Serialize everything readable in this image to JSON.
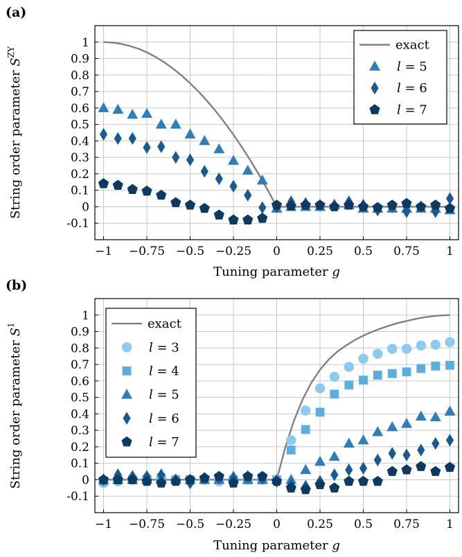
{
  "chart_data": [
    {
      "panel": "(a)",
      "type": "scatter",
      "xlabel": "Tuning parameter g",
      "ylabel": "String order parameter S^{ZY}",
      "xlim": [
        -1.05,
        1.05
      ],
      "ylim": [
        -0.2,
        1.1
      ],
      "xticks": [
        -1,
        -0.75,
        -0.5,
        -0.25,
        0,
        0.25,
        0.5,
        0.75,
        1
      ],
      "xtick_labels": [
        "−1",
        "−0.75",
        "−0.5",
        "−0.25",
        "0",
        "0.25",
        "0.5",
        "0.75",
        "1"
      ],
      "yticks": [
        -0.1,
        0,
        0.1,
        0.2,
        0.3,
        0.4,
        0.5,
        0.6,
        0.7,
        0.8,
        0.9,
        1
      ],
      "ytick_labels": [
        "-0.1",
        "0",
        "0.1",
        "0.2",
        "0.3",
        "0.4",
        "0.5",
        "0.6",
        "0.7",
        "0.8",
        "0.9",
        "1"
      ],
      "grid": true,
      "legend_position": "top-right",
      "exact": {
        "name": "exact",
        "color": "#808080",
        "x": [
          -1,
          -0.95,
          -0.9,
          -0.85,
          -0.8,
          -0.75,
          -0.7,
          -0.65,
          -0.6,
          -0.55,
          -0.5,
          -0.45,
          -0.4,
          -0.35,
          -0.3,
          -0.25,
          -0.2,
          -0.15,
          -0.1,
          -0.05,
          0,
          0.25,
          0.5,
          0.75,
          1
        ],
        "y": [
          1,
          0.997,
          0.99,
          0.977,
          0.96,
          0.938,
          0.91,
          0.878,
          0.84,
          0.798,
          0.75,
          0.698,
          0.64,
          0.578,
          0.51,
          0.438,
          0.36,
          0.278,
          0.19,
          0.098,
          0,
          0,
          0,
          0,
          0
        ]
      },
      "series": [
        {
          "name": "l = 5",
          "marker": "triangle",
          "color": "#2e7ebb",
          "x": [
            -1,
            -0.917,
            -0.833,
            -0.75,
            -0.667,
            -0.583,
            -0.5,
            -0.417,
            -0.333,
            -0.25,
            -0.167,
            -0.083,
            0,
            0.083,
            0.167,
            0.25,
            0.333,
            0.417,
            0.5,
            0.583,
            0.667,
            0.75,
            0.833,
            0.917,
            1
          ],
          "y": [
            0.6,
            0.59,
            0.56,
            0.565,
            0.5,
            0.5,
            0.44,
            0.4,
            0.35,
            0.28,
            0.22,
            0.16,
            -0.01,
            0.0,
            0.0,
            0.0,
            0.01,
            0.01,
            -0.01,
            -0.01,
            -0.01,
            -0.01,
            -0.01,
            -0.01,
            -0.02
          ]
        },
        {
          "name": "l = 6",
          "marker": "diamond",
          "color": "#1a5a92",
          "x": [
            -1,
            -0.917,
            -0.833,
            -0.75,
            -0.667,
            -0.583,
            -0.5,
            -0.417,
            -0.333,
            -0.25,
            -0.167,
            -0.083,
            0,
            0.083,
            0.167,
            0.25,
            0.333,
            0.417,
            0.5,
            0.583,
            0.667,
            0.75,
            0.833,
            0.917,
            1
          ],
          "y": [
            0.44,
            0.415,
            0.415,
            0.36,
            0.365,
            0.3,
            0.285,
            0.215,
            0.17,
            0.125,
            0.07,
            -0.005,
            0.0,
            0.03,
            0.02,
            0.01,
            0.01,
            0.03,
            0.01,
            -0.02,
            0.0,
            -0.03,
            0.0,
            -0.03,
            0.05
          ]
        },
        {
          "name": "l = 7",
          "marker": "pentagon",
          "color": "#0d3a60",
          "x": [
            -1,
            -0.917,
            -0.833,
            -0.75,
            -0.667,
            -0.583,
            -0.5,
            -0.417,
            -0.333,
            -0.25,
            -0.167,
            -0.083,
            0,
            0.083,
            0.167,
            0.25,
            0.333,
            0.417,
            0.5,
            0.583,
            0.667,
            0.75,
            0.833,
            0.917,
            1
          ],
          "y": [
            0.14,
            0.13,
            0.105,
            0.095,
            0.07,
            0.025,
            0.01,
            -0.01,
            -0.05,
            -0.08,
            -0.08,
            -0.07,
            0.01,
            0.005,
            0.01,
            0.01,
            0.0,
            0.01,
            0.0,
            -0.005,
            0.01,
            0.02,
            0.0,
            0.01,
            -0.01
          ]
        }
      ]
    },
    {
      "panel": "(b)",
      "type": "scatter",
      "xlabel": "Tuning parameter g",
      "ylabel": "String order parameter S^{1}",
      "xlim": [
        -1.05,
        1.05
      ],
      "ylim": [
        -0.2,
        1.1
      ],
      "xticks": [
        -1,
        -0.75,
        -0.5,
        -0.25,
        0,
        0.25,
        0.5,
        0.75,
        1
      ],
      "xtick_labels": [
        "−1",
        "−0.75",
        "−0.5",
        "−0.25",
        "0",
        "0.25",
        "0.5",
        "0.75",
        "1"
      ],
      "yticks": [
        -0.1,
        0,
        0.1,
        0.2,
        0.3,
        0.4,
        0.5,
        0.6,
        0.7,
        0.8,
        0.9,
        1
      ],
      "ytick_labels": [
        "-0.1",
        "0",
        "0.1",
        "0.2",
        "0.3",
        "0.4",
        "0.5",
        "0.6",
        "0.7",
        "0.8",
        "0.9",
        "1"
      ],
      "grid": true,
      "legend_position": "top-left",
      "exact": {
        "name": "exact",
        "color": "#808080",
        "x": [
          -1,
          -0.5,
          0,
          0.05,
          0.1,
          0.15,
          0.2,
          0.25,
          0.3,
          0.35,
          0.4,
          0.45,
          0.5,
          0.55,
          0.6,
          0.65,
          0.7,
          0.75,
          0.8,
          0.85,
          0.9,
          0.95,
          1
        ],
        "y": [
          0,
          0,
          0,
          0.198,
          0.36,
          0.488,
          0.59,
          0.668,
          0.73,
          0.778,
          0.815,
          0.848,
          0.875,
          0.898,
          0.918,
          0.936,
          0.952,
          0.964,
          0.976,
          0.986,
          0.993,
          0.998,
          1
        ]
      },
      "series": [
        {
          "name": "l = 3",
          "marker": "circle",
          "color": "#8ccbf0",
          "x": [
            -1,
            -0.917,
            -0.833,
            -0.75,
            -0.667,
            -0.583,
            -0.5,
            -0.417,
            -0.333,
            -0.25,
            -0.167,
            -0.083,
            0,
            0.083,
            0.167,
            0.25,
            0.333,
            0.417,
            0.5,
            0.583,
            0.667,
            0.75,
            0.833,
            0.917,
            1
          ],
          "y": [
            -0.02,
            -0.01,
            0.0,
            0.01,
            0.01,
            0.0,
            -0.01,
            0.0,
            -0.01,
            -0.01,
            0.0,
            0.0,
            0.0,
            0.24,
            0.42,
            0.555,
            0.625,
            0.685,
            0.735,
            0.765,
            0.795,
            0.795,
            0.815,
            0.82,
            0.835
          ]
        },
        {
          "name": "l = 4",
          "marker": "square",
          "color": "#5aaee0",
          "x": [
            -1,
            -0.917,
            -0.833,
            -0.75,
            -0.667,
            -0.583,
            -0.5,
            -0.417,
            -0.333,
            -0.25,
            -0.167,
            -0.083,
            0,
            0.083,
            0.167,
            0.25,
            0.333,
            0.417,
            0.5,
            0.583,
            0.667,
            0.75,
            0.833,
            0.917,
            1
          ],
          "y": [
            -0.01,
            0.0,
            0.0,
            0.0,
            0.01,
            0.0,
            0.0,
            0.0,
            0.01,
            0.0,
            0.0,
            0.0,
            0.0,
            0.18,
            0.305,
            0.41,
            0.52,
            0.575,
            0.605,
            0.635,
            0.645,
            0.655,
            0.675,
            0.69,
            0.695
          ]
        },
        {
          "name": "l = 5",
          "marker": "triangle",
          "color": "#2e7ebb",
          "x": [
            -1,
            -0.917,
            -0.833,
            -0.75,
            -0.667,
            -0.583,
            -0.5,
            -0.417,
            -0.333,
            -0.25,
            -0.167,
            -0.083,
            0,
            0.083,
            0.167,
            0.25,
            0.333,
            0.417,
            0.5,
            0.583,
            0.667,
            0.75,
            0.833,
            0.917,
            1
          ],
          "y": [
            0.0,
            0.0,
            0.0,
            0.0,
            0.0,
            0.0,
            0.0,
            0.0,
            0.0,
            0.02,
            0.0,
            0.0,
            0.0,
            0.0,
            0.06,
            0.11,
            0.14,
            0.22,
            0.24,
            0.29,
            0.32,
            0.34,
            0.385,
            0.38,
            0.415
          ]
        },
        {
          "name": "l = 6",
          "marker": "diamond",
          "color": "#1a5a92",
          "x": [
            -1,
            -0.917,
            -0.833,
            -0.75,
            -0.667,
            -0.583,
            -0.5,
            -0.417,
            -0.333,
            -0.25,
            -0.167,
            -0.083,
            0,
            0.083,
            0.167,
            0.25,
            0.333,
            0.417,
            0.5,
            0.583,
            0.667,
            0.75,
            0.833,
            0.917,
            1
          ],
          "y": [
            0.0,
            0.03,
            0.02,
            0.02,
            0.03,
            0.0,
            -0.02,
            0.01,
            0.01,
            0.01,
            0.02,
            0.01,
            -0.01,
            -0.03,
            -0.04,
            -0.01,
            0.03,
            0.06,
            0.07,
            0.12,
            0.16,
            0.15,
            0.18,
            0.22,
            0.24
          ]
        },
        {
          "name": "l = 7",
          "marker": "pentagon",
          "color": "#0d3a60",
          "x": [
            -1,
            -0.917,
            -0.833,
            -0.75,
            -0.667,
            -0.583,
            -0.5,
            -0.417,
            -0.333,
            -0.25,
            -0.167,
            -0.083,
            0,
            0.083,
            0.167,
            0.25,
            0.333,
            0.417,
            0.5,
            0.583,
            0.667,
            0.75,
            0.833,
            0.917,
            1
          ],
          "y": [
            0.0,
            0.0,
            0.0,
            -0.01,
            -0.02,
            -0.01,
            0.0,
            0.01,
            0.02,
            -0.02,
            0.02,
            0.02,
            -0.01,
            -0.05,
            -0.06,
            -0.03,
            -0.05,
            -0.01,
            -0.01,
            -0.01,
            0.05,
            0.06,
            0.08,
            0.05,
            0.075
          ]
        }
      ]
    }
  ]
}
